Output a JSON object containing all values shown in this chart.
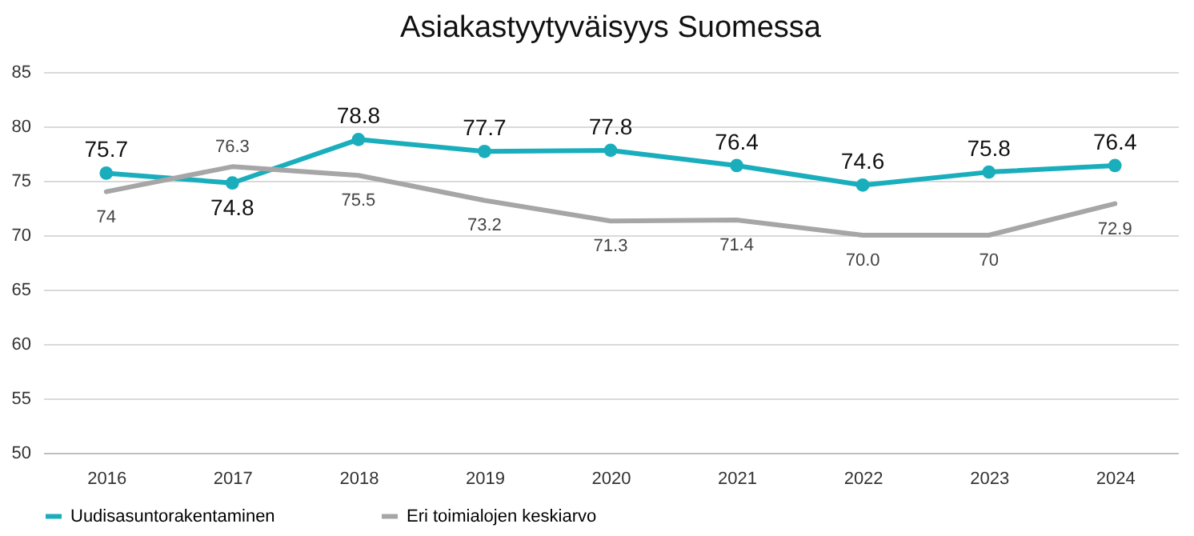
{
  "chart_data": {
    "type": "line",
    "title": "Asiakastyytyväisyys Suomessa",
    "categories": [
      "2016",
      "2017",
      "2018",
      "2019",
      "2020",
      "2021",
      "2022",
      "2023",
      "2024"
    ],
    "series": [
      {
        "name": "Uudisasuntorakentaminen",
        "color": "#1aaebd",
        "values": [
          75.7,
          74.8,
          78.8,
          77.7,
          77.8,
          76.4,
          74.6,
          75.8,
          76.4
        ],
        "value_labels": [
          "75.7",
          "74.8",
          "78.8",
          "77.7",
          "77.8",
          "76.4",
          "74.6",
          "75.8",
          "76.4"
        ]
      },
      {
        "name": "Eri toimialojen keskiarvo",
        "color": "#a6a6a6",
        "marker": "none",
        "values": [
          74,
          76.3,
          75.5,
          73.2,
          71.3,
          71.4,
          70.0,
          70,
          72.9
        ],
        "value_labels": [
          "74",
          "76.3",
          "75.5",
          "73.2",
          "71.3",
          "71.4",
          "70.0",
          "70",
          "72.9"
        ]
      }
    ],
    "ylim": [
      50,
      85
    ],
    "yticks": [
      50,
      55,
      60,
      65,
      70,
      75,
      80,
      85
    ],
    "grid": "y",
    "legend": "bottom",
    "marker": "circle",
    "line_style": "solid"
  }
}
